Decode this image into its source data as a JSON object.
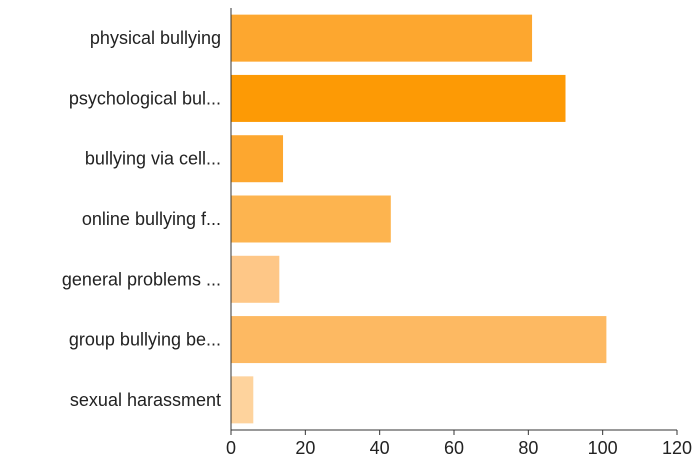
{
  "chart_data": {
    "type": "bar",
    "orientation": "horizontal",
    "categories": [
      "physical bullying",
      "psychological bul...",
      "bullying via cell...",
      "online bullying f...",
      "general problems ...",
      "group bullying be...",
      "sexual harassment"
    ],
    "values": [
      81,
      90,
      14,
      43,
      13,
      101,
      6
    ],
    "colors": [
      "#fda72f",
      "#fd9a05",
      "#fda72f",
      "#fdb44f",
      "#fec787",
      "#fdb962",
      "#fed39d"
    ],
    "xlim": [
      0,
      120
    ],
    "x_ticks": [
      0,
      20,
      40,
      60,
      80,
      100,
      120
    ],
    "title": "",
    "xlabel": "",
    "ylabel": "",
    "grid": false,
    "legend": "none"
  }
}
